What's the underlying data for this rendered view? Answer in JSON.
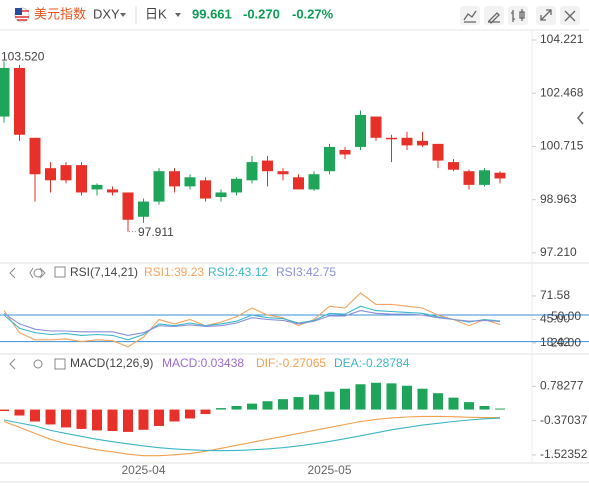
{
  "header": {
    "name": "美元指数",
    "symbol": "DXY",
    "period": "日K",
    "price": "99.661",
    "change": "-0.270",
    "change_pct": "-0.27%"
  },
  "chart_data": [
    {
      "type": "candlestick",
      "up_color": "#1ea55a",
      "down_color": "#e8302a",
      "open": [
        101.7,
        103.3,
        101.0,
        100.0,
        100.1,
        100.1,
        99.3,
        99.3,
        99.2,
        98.4,
        98.9,
        99.9,
        99.4,
        99.6,
        99.05,
        99.2,
        99.6,
        100.25,
        99.9,
        99.7,
        99.3,
        99.9,
        100.6,
        100.7,
        101.7,
        101.0,
        101.0,
        100.9,
        100.8,
        100.2,
        99.9,
        99.45,
        99.85
      ],
      "high": [
        103.52,
        103.4,
        101.0,
        100.2,
        100.2,
        100.2,
        99.5,
        99.4,
        99.2,
        99.0,
        100.0,
        100.0,
        99.8,
        99.7,
        99.3,
        99.7,
        100.4,
        100.4,
        100.0,
        99.8,
        99.9,
        100.8,
        100.7,
        101.9,
        101.7,
        101.1,
        101.2,
        101.2,
        100.8,
        100.3,
        99.95,
        100.0,
        99.9
      ],
      "low": [
        101.5,
        100.9,
        98.9,
        99.2,
        99.5,
        99.1,
        99.1,
        99.1,
        97.911,
        98.2,
        98.8,
        99.2,
        99.3,
        98.9,
        98.9,
        99.1,
        99.5,
        99.4,
        99.6,
        99.3,
        99.25,
        99.8,
        100.3,
        100.6,
        100.9,
        100.2,
        100.6,
        100.7,
        100.0,
        99.9,
        99.3,
        99.4,
        99.5
      ],
      "close": [
        103.3,
        101.1,
        99.8,
        99.6,
        99.6,
        99.2,
        99.45,
        99.2,
        98.3,
        98.9,
        99.9,
        99.4,
        99.7,
        99.0,
        99.2,
        99.65,
        100.2,
        99.9,
        99.8,
        99.3,
        99.8,
        100.7,
        100.45,
        101.75,
        101.0,
        100.95,
        100.75,
        100.75,
        100.25,
        99.95,
        99.45,
        99.93,
        99.661
      ],
      "annotations": [
        {
          "value": 103.52,
          "label": "103.520"
        },
        97.911
      ],
      "ylim": [
        96.91,
        104.55
      ],
      "yticks": [
        104.221,
        102.468,
        100.715,
        98.963,
        {
          "value": 97.21,
          "label": "97.210"
        }
      ],
      "grid": false
    },
    {
      "type": "line",
      "title": "RSI(7,14,21)",
      "series": [
        {
          "name": "RSI1:39.23",
          "color": "#f4a460",
          "values": [
            55,
            30,
            22,
            22,
            23,
            20,
            22,
            21,
            14,
            25,
            45,
            40,
            45,
            38,
            42,
            48,
            58,
            50,
            47,
            38,
            45,
            60,
            58,
            75,
            62,
            62,
            60,
            58,
            50,
            45,
            38,
            45,
            39.23
          ]
        },
        {
          "name": "RSI2:43.12",
          "color": "#3cb8c9",
          "values": [
            50,
            35,
            30,
            28,
            29,
            27,
            28,
            27,
            22,
            28,
            40,
            38,
            41,
            38,
            40,
            43,
            50,
            47,
            46,
            41,
            44,
            52,
            51,
            60,
            55,
            54,
            53,
            52,
            48,
            45,
            42,
            45,
            43.12
          ]
        },
        {
          "name": "RSI3:42.75",
          "color": "#8a8fd9",
          "values": [
            52,
            40,
            34,
            32,
            32,
            31,
            31,
            31,
            27,
            30,
            38,
            37,
            39,
            37,
            38,
            41,
            47,
            45,
            44,
            40,
            43,
            49,
            49,
            55,
            52,
            51,
            51,
            50,
            47,
            45,
            43,
            44,
            42.75
          ]
        }
      ],
      "ref_lines": [
        {
          "value": 50,
          "label": "50.00"
        },
        {
          "value": 20,
          "label": "20.00"
        }
      ],
      "ref_color": "#3a8fd8",
      "ylim": [
        8.2,
        84
      ],
      "yticks": [
        71.58,
        {
          "value": 45,
          "label": "45.00"
        },
        18.42
      ],
      "grid": false
    },
    {
      "type": "bar",
      "title": "MACD(12,26,9)",
      "categories": [
        null,
        null,
        null,
        null,
        null,
        null,
        null,
        null,
        null,
        "2025-04",
        null,
        null,
        null,
        null,
        null,
        null,
        null,
        null,
        null,
        null,
        null,
        "2025-05",
        null,
        null,
        null,
        null,
        null,
        null,
        null,
        null,
        null,
        null,
        null
      ],
      "series": [
        {
          "name": "MACD:0.03438",
          "type": "bar",
          "color": "#9b6bd0",
          "up_color": "#1ea55a",
          "down_color": "#e8302a",
          "values": [
            -0.05,
            -0.2,
            -0.4,
            -0.5,
            -0.6,
            -0.65,
            -0.7,
            -0.72,
            -0.75,
            -0.68,
            -0.55,
            -0.4,
            -0.3,
            -0.15,
            0.05,
            0.12,
            0.2,
            0.28,
            0.35,
            0.42,
            0.5,
            0.6,
            0.7,
            0.85,
            0.9,
            0.88,
            0.8,
            0.7,
            0.55,
            0.4,
            0.25,
            0.12,
            0.03438
          ]
        },
        {
          "name": "DIF:-0.27065",
          "type": "line",
          "color": "#f0a050",
          "values": [
            -0.4,
            -0.6,
            -0.8,
            -1.0,
            -1.15,
            -1.25,
            -1.35,
            -1.42,
            -1.5,
            -1.55,
            -1.55,
            -1.52,
            -1.48,
            -1.4,
            -1.3,
            -1.2,
            -1.1,
            -1.0,
            -0.9,
            -0.8,
            -0.7,
            -0.6,
            -0.5,
            -0.4,
            -0.33,
            -0.28,
            -0.25,
            -0.23,
            -0.23,
            -0.24,
            -0.26,
            -0.27,
            -0.27065
          ]
        },
        {
          "name": "DEA:-0.28784",
          "type": "line",
          "color": "#3cb5c5",
          "values": [
            -0.35,
            -0.45,
            -0.55,
            -0.7,
            -0.8,
            -0.9,
            -1.0,
            -1.08,
            -1.15,
            -1.22,
            -1.28,
            -1.32,
            -1.35,
            -1.37,
            -1.38,
            -1.37,
            -1.35,
            -1.32,
            -1.28,
            -1.22,
            -1.15,
            -1.07,
            -0.98,
            -0.88,
            -0.78,
            -0.68,
            -0.6,
            -0.52,
            -0.46,
            -0.4,
            -0.35,
            -0.31,
            -0.28784
          ]
        }
      ],
      "ylim": [
        -1.761,
        1.665
      ],
      "yticks": [
        0.78277,
        -0.37037,
        -1.52352
      ],
      "grid": false
    }
  ]
}
